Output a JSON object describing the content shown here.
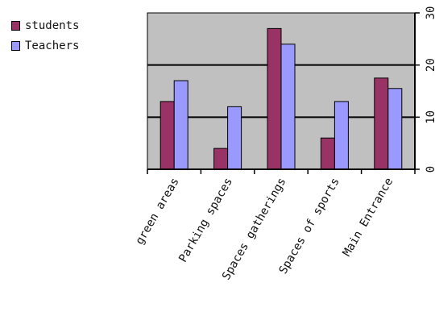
{
  "chart_data": {
    "type": "bar",
    "title": "",
    "xlabel": "",
    "ylabel": "",
    "categories": [
      "green areas",
      "Parking spaces",
      "Spaces gatherings",
      "Spaces of sports",
      "Main Entrance"
    ],
    "series": [
      {
        "name": "students",
        "values": [
          13,
          4,
          27,
          6,
          17.5
        ],
        "color": "#993366"
      },
      {
        "name": "Teachers",
        "values": [
          17,
          12,
          24,
          13,
          15.5
        ],
        "color": "#9999ff"
      }
    ],
    "ylim": [
      0,
      30
    ],
    "yticks": [
      0,
      10,
      20,
      30
    ],
    "y_axis_side": "right",
    "grid": true,
    "legend_position": "top-left",
    "colors": {
      "plot_background": "#c0c0c0",
      "grid": "#000000"
    }
  }
}
